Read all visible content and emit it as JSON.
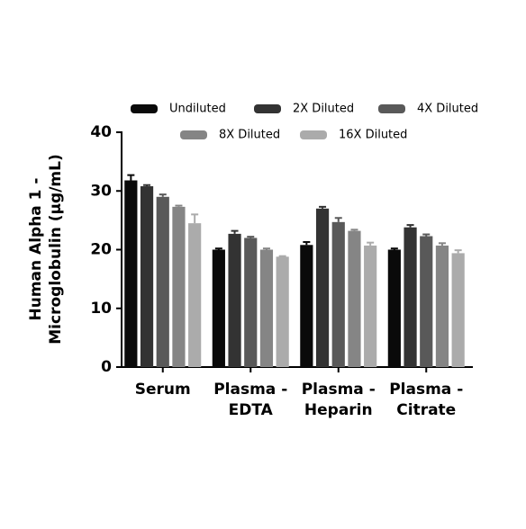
{
  "chart_data": {
    "type": "bar",
    "ylabel": [
      "Human Alpha 1 -",
      "Microglobulin (μg/mL)"
    ],
    "categories": [
      [
        "Serum"
      ],
      [
        "Plasma -",
        "EDTA"
      ],
      [
        "Plasma -",
        "Heparin"
      ],
      [
        "Plasma -",
        "Citrate"
      ]
    ],
    "series": [
      {
        "name": "Undiluted",
        "color": "#0a0a0a",
        "values": [
          31.8,
          20.0,
          20.8,
          20.0
        ],
        "errors": [
          0.9,
          0.2,
          0.5,
          0.2
        ]
      },
      {
        "name": "2X Diluted",
        "color": "#333333",
        "values": [
          30.8,
          22.7,
          27.0,
          23.8
        ],
        "errors": [
          0.2,
          0.5,
          0.3,
          0.4
        ]
      },
      {
        "name": "4X Diluted",
        "color": "#595959",
        "values": [
          29.0,
          22.0,
          24.7,
          22.3
        ],
        "errors": [
          0.4,
          0.2,
          0.7,
          0.3
        ]
      },
      {
        "name": "8X Diluted",
        "color": "#858585",
        "values": [
          27.3,
          20.0,
          23.2,
          20.7
        ],
        "errors": [
          0.2,
          0.2,
          0.2,
          0.4
        ]
      },
      {
        "name": "16X Diluted",
        "color": "#ababab",
        "values": [
          24.5,
          18.8,
          20.7,
          19.4
        ],
        "errors": [
          1.5,
          0.1,
          0.5,
          0.5
        ]
      }
    ],
    "ylim": [
      0,
      40
    ],
    "yticks": [
      0,
      10,
      20,
      30,
      40
    ],
    "grid": false
  }
}
